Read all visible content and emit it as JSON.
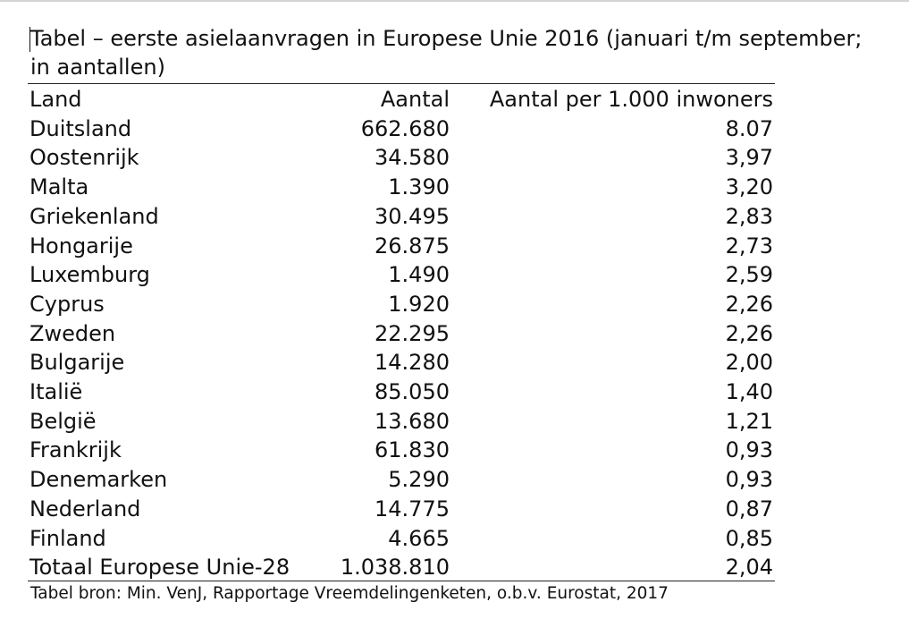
{
  "title_lines": [
    "Tabel – eerste asielaanvragen in Europese Unie 2016 (januari t/m september;",
    "in aantallen)"
  ],
  "headers": {
    "land": "Land",
    "aantal": "Aantal",
    "per_1000": "Aantal per 1.000 inwoners"
  },
  "rows": [
    {
      "land": "Duitsland",
      "aantal": "662.680",
      "per_1000": "8.07"
    },
    {
      "land": "Oostenrijk",
      "aantal": "34.580",
      "per_1000": "3,97"
    },
    {
      "land": "Malta",
      "aantal": "1.390",
      "per_1000": "3,20"
    },
    {
      "land": "Griekenland",
      "aantal": "30.495",
      "per_1000": "2,83"
    },
    {
      "land": "Hongarije",
      "aantal": "26.875",
      "per_1000": "2,73"
    },
    {
      "land": "Luxemburg",
      "aantal": "1.490",
      "per_1000": "2,59"
    },
    {
      "land": "Cyprus",
      "aantal": "1.920",
      "per_1000": "2,26"
    },
    {
      "land": "Zweden",
      "aantal": "22.295",
      "per_1000": "2,26"
    },
    {
      "land": "Bulgarije",
      "aantal": "14.280",
      "per_1000": "2,00"
    },
    {
      "land": "Italië",
      "aantal": "85.050",
      "per_1000": "1,40"
    },
    {
      "land": "België",
      "aantal": "13.680",
      "per_1000": "1,21"
    },
    {
      "land": "Frankrijk",
      "aantal": "61.830",
      "per_1000": "0,93"
    },
    {
      "land": "Denemarken",
      "aantal": "5.290",
      "per_1000": "0,93"
    },
    {
      "land": "Nederland",
      "aantal": "14.775",
      "per_1000": "0,87"
    },
    {
      "land": "Finland",
      "aantal": "4.665",
      "per_1000": "0,85"
    },
    {
      "land": "Totaal Europese Unie-28",
      "aantal": "1.038.810",
      "per_1000": "2,04"
    }
  ],
  "source": "Tabel bron: Min. VenJ, Rapportage Vreemdelingenketen, o.b.v. Eurostat, 2017"
}
